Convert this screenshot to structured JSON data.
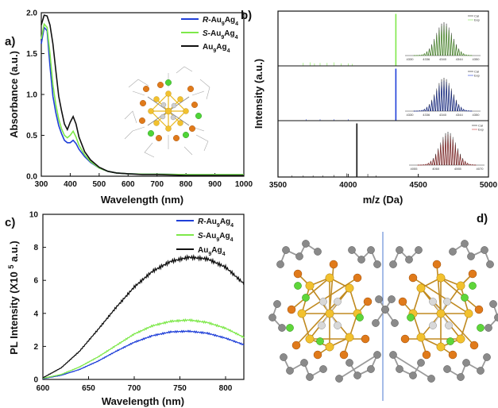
{
  "panels": {
    "a": {
      "label": "a)"
    },
    "b": {
      "label": "b)"
    },
    "c": {
      "label": "c)"
    },
    "d": {
      "label": "d)"
    }
  },
  "legend_a": [
    {
      "name": "R-Au9Ag4",
      "prefix": "R",
      "color": "#1f3fd8"
    },
    {
      "name": "S-Au9Ag4",
      "prefix": "S",
      "color": "#7ee84a"
    },
    {
      "name": "Au9Ag4",
      "prefix": "",
      "color": "#111111"
    }
  ],
  "inset_b": {
    "legend_labels": [
      "Cal",
      "Exp"
    ],
    "tick_labels": [
      [
        "4330",
        "4336",
        "4340",
        "4344",
        "4350"
      ],
      [
        "4330",
        "4336",
        "4340",
        "4344",
        "4350"
      ],
      [
        "4055",
        "4060",
        "4065",
        "4070"
      ]
    ]
  },
  "chart_data": [
    {
      "type": "line",
      "panel": "a",
      "xlabel": "Wavelength (nm)",
      "ylabel": "Absorbance (a.u.)",
      "xlim": [
        300,
        1000
      ],
      "ylim": [
        0,
        2.0
      ],
      "x_ticks": [
        300,
        400,
        500,
        600,
        700,
        800,
        900,
        1000
      ],
      "y_ticks": [
        "0.0",
        "0.5",
        "1.0",
        "1.5",
        "2.0"
      ],
      "series": [
        {
          "name": "R-Au9Ag4",
          "color": "#1f3fd8",
          "x": [
            300,
            310,
            320,
            330,
            340,
            350,
            360,
            370,
            380,
            390,
            400,
            410,
            420,
            430,
            450,
            470,
            500,
            530,
            560,
            600,
            650,
            700,
            800,
            900,
            1000
          ],
          "y": [
            1.62,
            1.82,
            1.78,
            1.35,
            0.98,
            0.78,
            0.62,
            0.52,
            0.44,
            0.41,
            0.41,
            0.44,
            0.4,
            0.33,
            0.24,
            0.17,
            0.1,
            0.06,
            0.04,
            0.03,
            0.025,
            0.025,
            0.02,
            0.02,
            0.02
          ]
        },
        {
          "name": "S-Au9Ag4",
          "color": "#7ee84a",
          "x": [
            300,
            310,
            320,
            330,
            340,
            350,
            360,
            370,
            380,
            390,
            400,
            410,
            420,
            430,
            450,
            470,
            500,
            530,
            560,
            600,
            650,
            700,
            800,
            900,
            1000
          ],
          "y": [
            1.68,
            1.86,
            1.82,
            1.5,
            1.12,
            0.88,
            0.7,
            0.58,
            0.5,
            0.47,
            0.5,
            0.55,
            0.48,
            0.38,
            0.26,
            0.18,
            0.1,
            0.06,
            0.04,
            0.03,
            0.025,
            0.025,
            0.02,
            0.02,
            0.02
          ]
        },
        {
          "name": "Au9Ag4",
          "color": "#111111",
          "x": [
            300,
            310,
            320,
            330,
            340,
            350,
            360,
            370,
            380,
            390,
            400,
            410,
            420,
            430,
            450,
            470,
            500,
            530,
            560,
            600,
            650,
            700,
            800,
            900,
            1000
          ],
          "y": [
            1.85,
            1.97,
            1.96,
            1.85,
            1.62,
            1.3,
            0.98,
            0.8,
            0.64,
            0.57,
            0.66,
            0.73,
            0.64,
            0.48,
            0.3,
            0.2,
            0.11,
            0.06,
            0.04,
            0.03,
            0.02,
            0.02,
            0.01,
            0.01,
            0.01
          ]
        }
      ]
    },
    {
      "type": "bar",
      "panel": "b",
      "xlabel": "m/z (Da)",
      "ylabel": "Intensity (a.u.)",
      "xlim": [
        3500,
        5000
      ],
      "x_ticks": [
        3500,
        4000,
        4500,
        5000
      ],
      "series": [
        {
          "name": "",
          "color": "#7ee84a",
          "peaks_x": [
            3680,
            3730,
            3760,
            3800,
            3850,
            3900,
            3950,
            4000,
            4030,
            4340
          ],
          "peaks_y": [
            0.05,
            0.06,
            0.04,
            0.05,
            0.05,
            0.06,
            0.04,
            0.04,
            0.03,
            1.0
          ]
        },
        {
          "name": "",
          "color": "#1f3fd8",
          "peaks_x": [
            3700,
            3800,
            3900,
            4000,
            4340
          ],
          "peaks_y": [
            0.02,
            0.02,
            0.02,
            0.02,
            1.0
          ]
        },
        {
          "name": "",
          "color": "#111111",
          "peaks_x": [
            3600,
            3680,
            3750,
            3820,
            3900,
            3990,
            4062,
            4140,
            4200
          ],
          "peaks_y": [
            0.02,
            0.02,
            0.02,
            0.02,
            0.03,
            0.06,
            1.0,
            0.05,
            0.02
          ]
        }
      ]
    },
    {
      "type": "line",
      "panel": "c",
      "xlabel": "Wavelength (nm)",
      "ylabel": "PL Intensity (X10^5 a.u.)",
      "xlim": [
        600,
        820
      ],
      "ylim": [
        0,
        10
      ],
      "x_ticks": [
        600,
        650,
        700,
        750,
        800
      ],
      "y_ticks": [
        0,
        2,
        4,
        6,
        8,
        10
      ],
      "series": [
        {
          "name": "R-Au9Ag4",
          "color": "#1f3fd8",
          "x": [
            600,
            620,
            640,
            660,
            680,
            700,
            720,
            740,
            760,
            780,
            800,
            820
          ],
          "y": [
            0.05,
            0.25,
            0.6,
            1.1,
            1.7,
            2.25,
            2.65,
            2.88,
            2.92,
            2.8,
            2.5,
            2.1
          ]
        },
        {
          "name": "S-Au9Ag4",
          "color": "#7ee84a",
          "x": [
            600,
            620,
            640,
            660,
            680,
            700,
            720,
            740,
            760,
            780,
            800,
            820
          ],
          "y": [
            0.07,
            0.3,
            0.75,
            1.35,
            2.05,
            2.75,
            3.25,
            3.52,
            3.6,
            3.45,
            3.1,
            2.55
          ]
        },
        {
          "name": "Au9Ag4",
          "color": "#111111",
          "x": [
            600,
            620,
            640,
            660,
            680,
            700,
            720,
            740,
            760,
            780,
            800,
            820
          ],
          "y": [
            0.1,
            0.7,
            1.7,
            3.0,
            4.35,
            5.6,
            6.55,
            7.15,
            7.4,
            7.3,
            6.8,
            5.8
          ]
        }
      ]
    }
  ]
}
